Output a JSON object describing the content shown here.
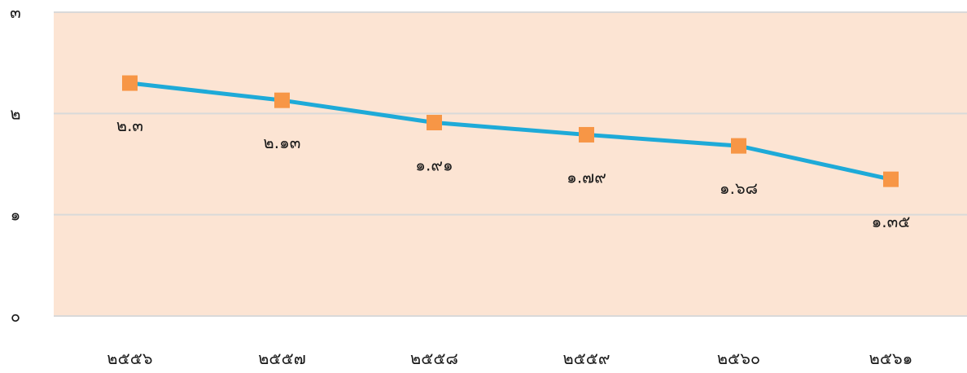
{
  "chart_data": {
    "type": "line",
    "categories": [
      "๒๕๕๖",
      "๒๕๕๗",
      "๒๕๕๘",
      "๒๕๕๙",
      "๒๕๖๐",
      "๒๕๖๑"
    ],
    "series": [
      {
        "values": [
          2.3,
          2.13,
          1.91,
          1.79,
          1.68,
          1.35
        ],
        "labels": [
          "๒.๓",
          "๒.๑๓",
          "๑.๙๑",
          "๑.๗๙",
          "๑.๖๘",
          "๑.๓๕"
        ]
      }
    ],
    "ylim": [
      0,
      3
    ],
    "yticks": [
      {
        "value": 0,
        "label": "๐"
      },
      {
        "value": 1,
        "label": "๑"
      },
      {
        "value": 2,
        "label": "๒"
      },
      {
        "value": 3,
        "label": "๓"
      }
    ],
    "grid": true,
    "colors": {
      "plot_background": "#fce4d3",
      "line": "#1eaad8",
      "marker": "#f79646",
      "gridline": "#d9d9d9"
    }
  }
}
